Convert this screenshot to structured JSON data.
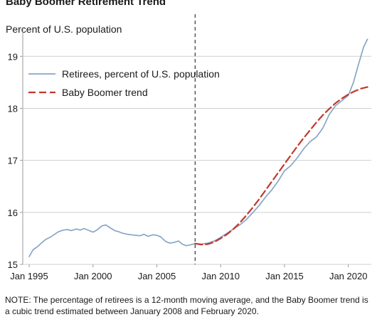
{
  "chart_data": {
    "type": "line",
    "title": "Baby Boomer Retirement Trend",
    "ylabel": "Percent of U.S. population",
    "xlabel": "",
    "ylim": [
      15,
      19.4
    ],
    "xlim": [
      1994.5,
      2021.8
    ],
    "yticks": [
      15,
      16,
      17,
      18,
      19
    ],
    "xticks": [
      {
        "value": 1995,
        "label": "Jan 1995"
      },
      {
        "value": 2000,
        "label": "Jan 2000"
      },
      {
        "value": 2005,
        "label": "Jan 2005"
      },
      {
        "value": 2010,
        "label": "Jan 2010"
      },
      {
        "value": 2015,
        "label": "Jan 2015"
      },
      {
        "value": 2020,
        "label": "Jan 2020"
      }
    ],
    "vline": 2008,
    "legend_placement": "top-left",
    "series": [
      {
        "name": "Retirees, percent of U.S. population",
        "color": "#86a6c6",
        "style": "solid",
        "x": [
          1995.0,
          1995.3,
          1995.7,
          1996.0,
          1996.3,
          1996.7,
          1997.0,
          1997.3,
          1997.7,
          1998.0,
          1998.3,
          1998.7,
          1999.0,
          1999.3,
          1999.7,
          2000.0,
          2000.3,
          2000.7,
          2001.0,
          2001.3,
          2001.7,
          2002.0,
          2002.3,
          2002.7,
          2003.0,
          2003.3,
          2003.7,
          2004.0,
          2004.3,
          2004.7,
          2005.0,
          2005.3,
          2005.7,
          2006.0,
          2006.3,
          2006.7,
          2007.0,
          2007.3,
          2007.7,
          2008.0,
          2008.5,
          2009.0,
          2009.5,
          2010.0,
          2010.5,
          2011.0,
          2011.5,
          2012.0,
          2012.5,
          2013.0,
          2013.5,
          2014.0,
          2014.5,
          2015.0,
          2015.5,
          2016.0,
          2016.5,
          2017.0,
          2017.5,
          2018.0,
          2018.5,
          2019.0,
          2019.5,
          2020.0,
          2020.4,
          2020.8,
          2021.2,
          2021.5
        ],
        "y": [
          15.15,
          15.28,
          15.35,
          15.42,
          15.48,
          15.53,
          15.58,
          15.63,
          15.66,
          15.67,
          15.65,
          15.68,
          15.66,
          15.69,
          15.65,
          15.62,
          15.66,
          15.74,
          15.76,
          15.71,
          15.65,
          15.63,
          15.6,
          15.58,
          15.57,
          15.56,
          15.55,
          15.58,
          15.54,
          15.57,
          15.56,
          15.53,
          15.44,
          15.41,
          15.42,
          15.45,
          15.39,
          15.36,
          15.38,
          15.4,
          15.39,
          15.41,
          15.45,
          15.52,
          15.6,
          15.68,
          15.76,
          15.86,
          15.99,
          16.13,
          16.29,
          16.43,
          16.6,
          16.8,
          16.9,
          17.05,
          17.22,
          17.36,
          17.45,
          17.62,
          17.88,
          18.05,
          18.15,
          18.25,
          18.5,
          18.85,
          19.18,
          19.33
        ]
      },
      {
        "name": "Baby Boomer trend",
        "color": "#c0392b",
        "style": "dashed",
        "x": [
          2008.0,
          2008.5,
          2009.0,
          2009.5,
          2010.0,
          2010.5,
          2011.0,
          2011.5,
          2012.0,
          2012.5,
          2013.0,
          2013.5,
          2014.0,
          2014.5,
          2015.0,
          2015.5,
          2016.0,
          2016.5,
          2017.0,
          2017.5,
          2018.0,
          2018.5,
          2019.0,
          2019.5,
          2020.0,
          2020.5,
          2021.0,
          2021.5
        ],
        "y": [
          15.4,
          15.38,
          15.39,
          15.43,
          15.5,
          15.58,
          15.68,
          15.8,
          15.94,
          16.09,
          16.25,
          16.42,
          16.59,
          16.76,
          16.93,
          17.1,
          17.27,
          17.43,
          17.58,
          17.73,
          17.87,
          17.99,
          18.1,
          18.19,
          18.27,
          18.33,
          18.38,
          18.41
        ]
      }
    ]
  },
  "note": "NOTE: The percentage of retirees is a 12-month moving average, and the Baby Boomer trend is a cubic trend estimated between January 2008 and February 2020."
}
